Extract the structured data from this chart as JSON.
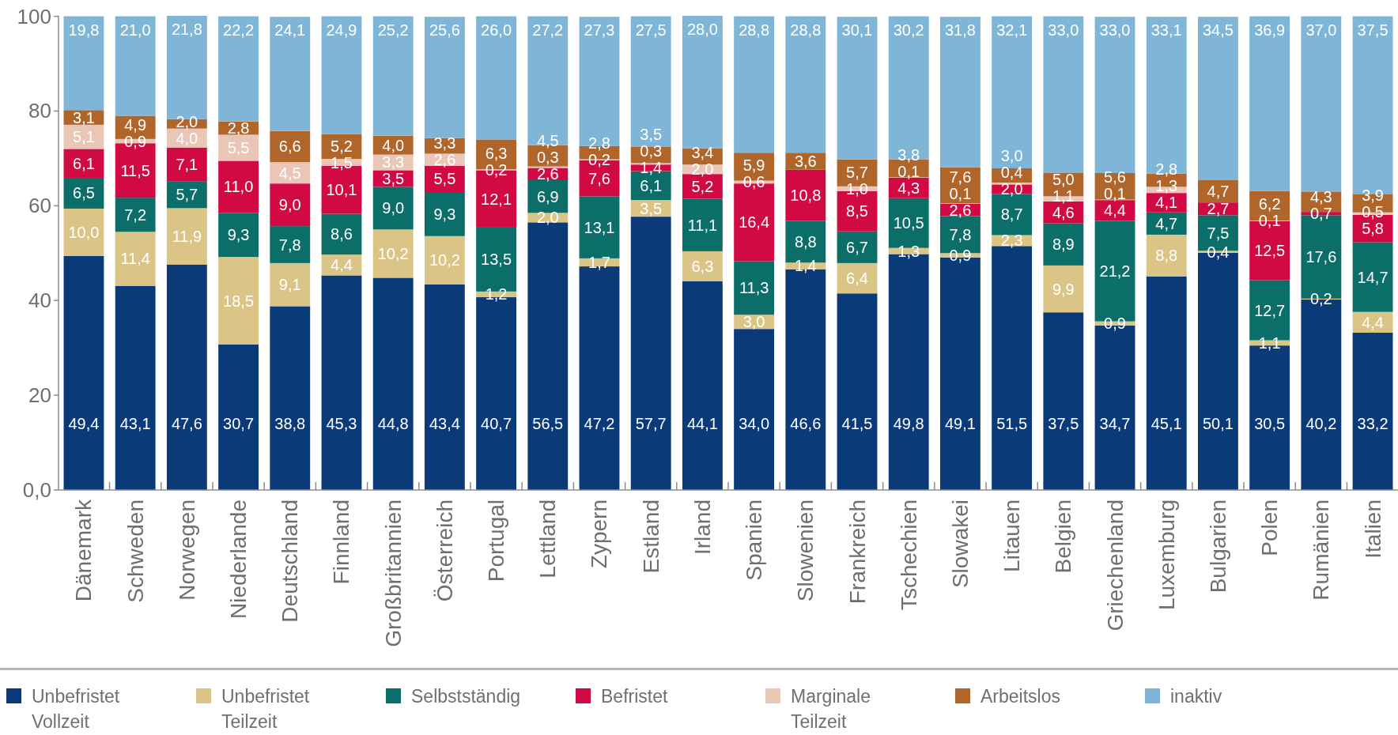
{
  "chart_data": {
    "type": "bar",
    "stacked": true,
    "legend": "bottom",
    "categories": [
      "Dänemark",
      "Schweden",
      "Norwegen",
      "Niederlande",
      "Deutschland",
      "Finnland",
      "Großbritannien",
      "Österreich",
      "Portugal",
      "Lettland",
      "Zypern",
      "Estland",
      "Irland",
      "Spanien",
      "Slowenien",
      "Frankreich",
      "Tschechien",
      "Slowakei",
      "Litauen",
      "Belgien",
      "Griechenland",
      "Luxemburg",
      "Bulgarien",
      "Polen",
      "Rumänien",
      "Italien"
    ],
    "ylim": [
      0,
      100.1
    ],
    "yticks": [
      {
        "value": 0,
        "label": "0,0"
      },
      20,
      40,
      60,
      80,
      100
    ],
    "series": [
      {
        "name": "Unbefristet Vollzeit",
        "color": "#0b3a78",
        "values": [
          49.4,
          43.1,
          47.6,
          30.7,
          38.8,
          45.3,
          44.8,
          43.4,
          40.7,
          56.5,
          47.2,
          57.7,
          44.1,
          34.0,
          46.6,
          41.5,
          49.8,
          49.1,
          51.5,
          37.5,
          34.7,
          45.1,
          50.1,
          30.5,
          40.2,
          33.2
        ],
        "value_labels": [
          "49,4",
          "43,1",
          "47,6",
          "30,7",
          "38,8",
          "45,3",
          "44,8",
          "43,4",
          "40,7",
          "56,5",
          "47,2",
          "57,7",
          "44,1",
          "34,0",
          "46,6",
          "41,5",
          "49,8",
          "49,1",
          "51,5",
          "37,5",
          "34,7",
          "45,1",
          "50,1",
          "30,5",
          "40,2",
          "33,2"
        ]
      },
      {
        "name": "Unbefristet Teilzeit",
        "color": "#dbc586",
        "values": [
          10.0,
          11.4,
          11.9,
          18.5,
          9.1,
          4.4,
          10.2,
          10.2,
          1.2,
          2.0,
          1.7,
          3.5,
          6.3,
          3.0,
          1.4,
          6.4,
          1.3,
          0.9,
          2.3,
          9.9,
          0.9,
          8.8,
          0.4,
          1.1,
          0.2,
          4.4
        ],
        "value_labels": [
          "10,0",
          "11,4",
          "11,9",
          "18,5",
          "9,1",
          "4,4",
          "10,2",
          "10,2",
          "1,2",
          "2,0",
          "1,7",
          "3,5",
          "6,3",
          "3,0",
          "1,4",
          "6,4",
          "1,3",
          "0,9",
          "2,3",
          "9,9",
          "0,9",
          "8,8",
          "0,4",
          "1,1",
          "0,2",
          "4,4"
        ]
      },
      {
        "name": "Selbstständig",
        "color": "#0b6e69",
        "values": [
          6.5,
          7.2,
          5.7,
          9.3,
          7.8,
          8.6,
          9.0,
          9.3,
          13.5,
          6.9,
          13.1,
          6.1,
          11.1,
          11.3,
          8.8,
          6.7,
          10.5,
          7.8,
          8.7,
          8.9,
          21.2,
          4.7,
          7.5,
          12.7,
          17.6,
          14.7
        ],
        "value_labels": [
          "6,5",
          "7,2",
          "5,7",
          "9,3",
          "7,8",
          "8,6",
          "9,0",
          "9,3",
          "13,5",
          "6,9",
          "13,1",
          "6,1",
          "11,1",
          "11,3",
          "8,8",
          "6,7",
          "10,5",
          "7,8",
          "8,7",
          "8,9",
          "21,2",
          "4,7",
          "7,5",
          "12,7",
          "17,6",
          "14,7"
        ]
      },
      {
        "name": "Befristet",
        "color": "#d20a43",
        "values": [
          6.1,
          11.5,
          7.1,
          11.0,
          9.0,
          10.1,
          3.5,
          5.5,
          12.1,
          2.6,
          7.6,
          1.4,
          5.2,
          16.4,
          10.8,
          8.5,
          4.3,
          2.6,
          2.0,
          4.6,
          4.4,
          4.1,
          2.7,
          12.5,
          0.7,
          5.8
        ],
        "value_labels": [
          "6,1",
          "11,5",
          "7,1",
          "11,0",
          "9,0",
          "10,1",
          "3,5",
          "5,5",
          "12,1",
          "2,6",
          "7,6",
          "1,4",
          "5,2",
          "16,4",
          "10,8",
          "8,5",
          "4,3",
          "2,6",
          "2,0",
          "4,6",
          "4,4",
          "4,1",
          "2,7",
          "12,5",
          "0,7",
          "5,8"
        ]
      },
      {
        "name": "Marginale Teilzeit",
        "color": "#e9c6b6",
        "values": [
          5.1,
          0.9,
          4.0,
          5.5,
          4.5,
          1.5,
          3.3,
          2.6,
          0.2,
          0.3,
          0.2,
          0.3,
          2.0,
          0.6,
          null,
          1.0,
          0.1,
          0.1,
          0.4,
          1.1,
          0.1,
          1.3,
          null,
          0.1,
          null,
          0.5
        ],
        "value_labels": [
          "5,1",
          "0,9",
          "4,0",
          "5,5",
          "4,5",
          "1,5",
          "3,3",
          "2,6",
          "0,2",
          "0,3",
          "0,2",
          "0,3",
          "2,0",
          "0,6",
          null,
          "1,0",
          "0,1",
          "0,1",
          "0,4",
          "1,1",
          "0,1",
          "1,3",
          null,
          "0,1",
          null,
          "0,5"
        ]
      },
      {
        "name": "Arbeitslos",
        "color": "#b0652b",
        "values": [
          3.1,
          4.9,
          2.0,
          2.8,
          6.6,
          5.2,
          4.0,
          3.3,
          6.3,
          4.5,
          2.8,
          3.5,
          3.4,
          5.9,
          3.6,
          5.7,
          3.8,
          7.6,
          3.0,
          5.0,
          5.6,
          2.8,
          4.7,
          6.2,
          4.3,
          3.9
        ],
        "value_labels": [
          "3,1",
          "4,9",
          "2,0",
          "2,8",
          "6,6",
          "5,2",
          "4,0",
          "3,3",
          "6,3",
          "4,5",
          "2,8",
          "3,5",
          "3,4",
          "5,9",
          "3,6",
          "5,7",
          "3,8",
          "7,6",
          "3,0",
          "5,0",
          "5,6",
          "2,8",
          "4,7",
          "6,2",
          "4,3",
          "3,9"
        ]
      },
      {
        "name": "inaktiv",
        "color": "#7fb5d6",
        "values": [
          19.8,
          21.0,
          21.8,
          22.2,
          24.1,
          24.9,
          25.2,
          25.6,
          26.0,
          27.2,
          27.3,
          27.5,
          28.0,
          28.8,
          28.8,
          30.1,
          30.2,
          31.8,
          32.1,
          33.0,
          33.0,
          33.1,
          34.5,
          36.9,
          37.0,
          37.5
        ],
        "value_labels": [
          "19,8",
          "21,0",
          "21,8",
          "22,2",
          "24,1",
          "24,9",
          "25,2",
          "25,6",
          "26,0",
          "27,2",
          "27,3",
          "27,5",
          "28,0",
          "28,8",
          "28,8",
          "30,1",
          "30,2",
          "31,8",
          "32,1",
          "33,0",
          "33,0",
          "33,1",
          "34,5",
          "36,9",
          "37,0",
          "37,5"
        ]
      }
    ]
  }
}
